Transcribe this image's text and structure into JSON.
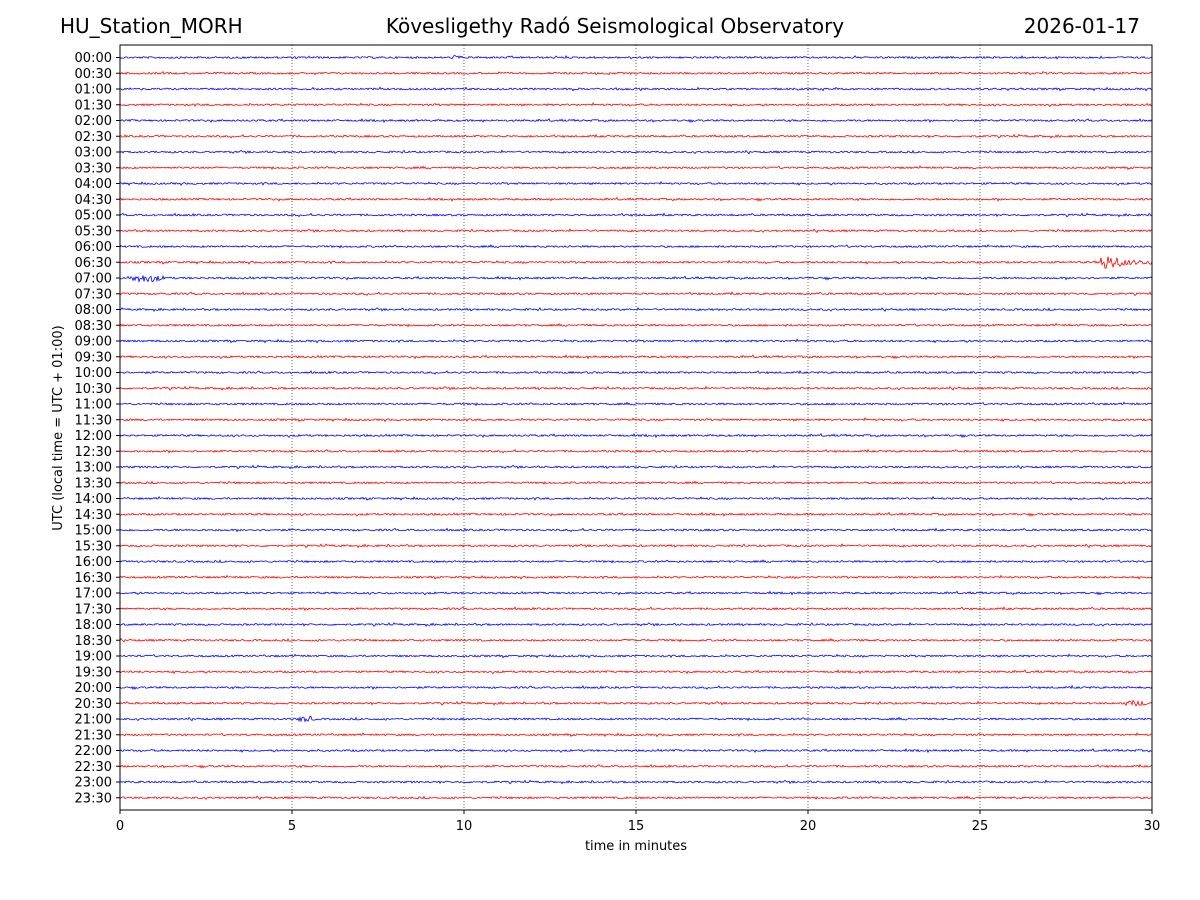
{
  "header": {
    "station": "HU_Station_MORH",
    "observatory": "Kövesligethy Radó Seismological Observatory",
    "date": "2026-01-17"
  },
  "chart_data": {
    "type": "line",
    "title": "Kövesligethy Radó Seismological Observatory",
    "xlabel": "time in minutes",
    "ylabel": "UTC (local time = UTC + 01:00)",
    "xlim": [
      0,
      30
    ],
    "xticks": [
      "0",
      "5",
      "10",
      "15",
      "20",
      "25",
      "30"
    ],
    "grid": "vertical dotted lines at 5-minute intervals",
    "trace_colors": [
      "#0000ff",
      "#ff0000"
    ],
    "rows": [
      "00:00",
      "00:30",
      "01:00",
      "01:30",
      "02:00",
      "02:30",
      "03:00",
      "03:30",
      "04:00",
      "04:30",
      "05:00",
      "05:30",
      "06:00",
      "06:30",
      "07:00",
      "07:30",
      "08:00",
      "08:30",
      "09:00",
      "09:30",
      "10:00",
      "10:30",
      "11:00",
      "11:30",
      "12:00",
      "12:30",
      "13:00",
      "13:30",
      "14:00",
      "14:30",
      "15:00",
      "15:30",
      "16:00",
      "16:30",
      "17:00",
      "17:30",
      "18:00",
      "18:30",
      "19:00",
      "19:30",
      "20:00",
      "20:30",
      "21:00",
      "21:30",
      "22:00",
      "22:30",
      "23:00",
      "23:30"
    ],
    "events": [
      {
        "row": "06:30",
        "start_min": 28.5,
        "end_min": 30,
        "amplitude": "large"
      },
      {
        "row": "07:00",
        "start_min": 0,
        "end_min": 1.5,
        "amplitude": "medium"
      },
      {
        "row": "21:00",
        "start_min": 5.0,
        "end_min": 5.8,
        "amplitude": "small"
      },
      {
        "row": "00:00",
        "start_min": 9.6,
        "end_min": 10.0,
        "amplitude": "small"
      },
      {
        "row": "20:30",
        "start_min": 29.0,
        "end_min": 30,
        "amplitude": "small"
      }
    ]
  }
}
